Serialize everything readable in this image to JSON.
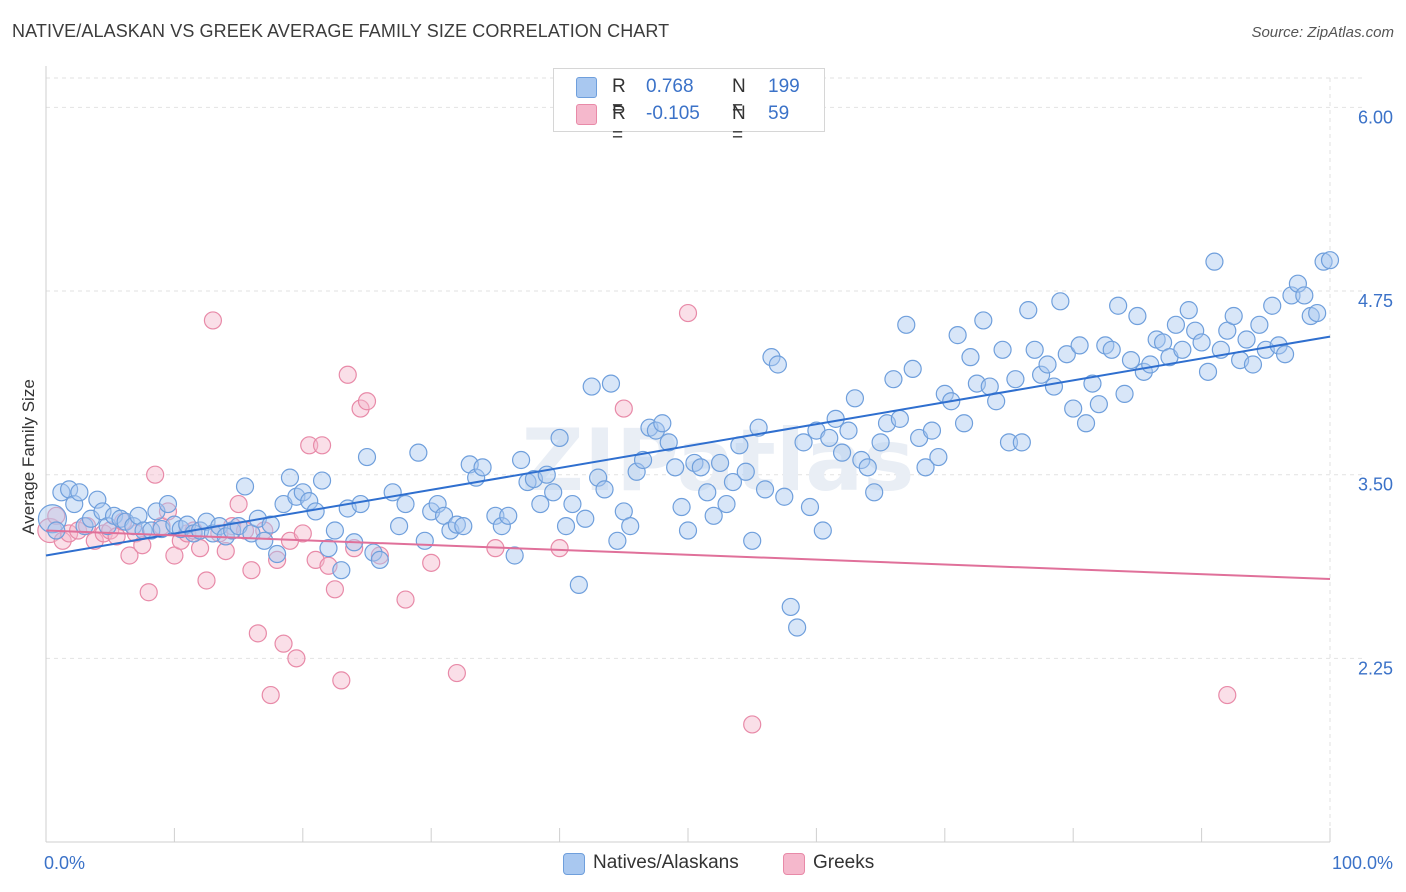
{
  "title": "NATIVE/ALASKAN VS GREEK AVERAGE FAMILY SIZE CORRELATION CHART",
  "source": "Source: ZipAtlas.com",
  "watermark": "ZIPatlas",
  "colors": {
    "blue_fill": "#a9c8f0",
    "blue_stroke": "#6f9fdc",
    "blue_line": "#2f6fcf",
    "pink_fill": "#f5b8cc",
    "pink_stroke": "#e88aa8",
    "pink_line": "#e0709a",
    "axis_text": "#3b72c8",
    "grid": "#e2e2e2"
  },
  "legend": {
    "rows": [
      {
        "r_label": "R =",
        "r_value": "0.768",
        "n_label": "N =",
        "n_value": "199"
      },
      {
        "r_label": "R =",
        "r_value": "-0.105",
        "n_label": "N =",
        "n_value": "59"
      }
    ]
  },
  "bottom_legend": [
    "Natives/Alaskans",
    "Greeks"
  ],
  "chart_data": {
    "type": "scatter",
    "title": "NATIVE/ALASKAN VS GREEK AVERAGE FAMILY SIZE CORRELATION CHART",
    "xlabel": "",
    "ylabel": "Average Family Size",
    "xlim": [
      0,
      100
    ],
    "ylim": [
      1.0,
      6.2
    ],
    "x_tick_labels": [
      "0.0%",
      "100.0%"
    ],
    "y_ticks": [
      2.25,
      3.5,
      4.75,
      6.0
    ],
    "y_tick_labels": [
      "2.25",
      "3.50",
      "4.75",
      "6.00"
    ],
    "grid": true,
    "legend_position": "top-center",
    "series": [
      {
        "name": "Natives/Alaskans",
        "color": "#a9c8f0",
        "trend": {
          "x": [
            0,
            100
          ],
          "y": [
            2.95,
            4.44
          ]
        },
        "points": [
          [
            0.5,
            3.2
          ],
          [
            0.8,
            3.12
          ],
          [
            1.2,
            3.38
          ],
          [
            1.8,
            3.4
          ],
          [
            2.2,
            3.3
          ],
          [
            2.6,
            3.38
          ],
          [
            3.0,
            3.15
          ],
          [
            3.5,
            3.2
          ],
          [
            4.0,
            3.33
          ],
          [
            4.4,
            3.25
          ],
          [
            4.8,
            3.15
          ],
          [
            5.3,
            3.22
          ],
          [
            5.8,
            3.2
          ],
          [
            6.2,
            3.18
          ],
          [
            6.8,
            3.15
          ],
          [
            7.2,
            3.22
          ],
          [
            7.6,
            3.12
          ],
          [
            8.2,
            3.12
          ],
          [
            8.6,
            3.25
          ],
          [
            9.0,
            3.13
          ],
          [
            9.5,
            3.3
          ],
          [
            10.0,
            3.16
          ],
          [
            10.5,
            3.13
          ],
          [
            11.0,
            3.16
          ],
          [
            11.5,
            3.1
          ],
          [
            12.0,
            3.12
          ],
          [
            12.5,
            3.18
          ],
          [
            13.0,
            3.1
          ],
          [
            13.5,
            3.15
          ],
          [
            14.0,
            3.08
          ],
          [
            14.5,
            3.12
          ],
          [
            15.0,
            3.15
          ],
          [
            15.5,
            3.42
          ],
          [
            16.0,
            3.1
          ],
          [
            16.5,
            3.2
          ],
          [
            17.0,
            3.05
          ],
          [
            17.5,
            3.16
          ],
          [
            18.0,
            2.96
          ],
          [
            18.5,
            3.3
          ],
          [
            19.0,
            3.48
          ],
          [
            19.5,
            3.35
          ],
          [
            20.0,
            3.38
          ],
          [
            20.5,
            3.32
          ],
          [
            21.0,
            3.25
          ],
          [
            21.5,
            3.46
          ],
          [
            22.0,
            3.0
          ],
          [
            22.5,
            3.12
          ],
          [
            23.0,
            2.85
          ],
          [
            23.5,
            3.27
          ],
          [
            24.0,
            3.04
          ],
          [
            24.5,
            3.3
          ],
          [
            25.0,
            3.62
          ],
          [
            25.5,
            2.97
          ],
          [
            26.0,
            2.92
          ],
          [
            27.0,
            3.38
          ],
          [
            27.5,
            3.15
          ],
          [
            28.0,
            3.3
          ],
          [
            29.0,
            3.65
          ],
          [
            29.5,
            3.05
          ],
          [
            30.0,
            3.25
          ],
          [
            30.5,
            3.3
          ],
          [
            31.0,
            3.22
          ],
          [
            31.5,
            3.12
          ],
          [
            32.0,
            3.16
          ],
          [
            32.5,
            3.15
          ],
          [
            33.0,
            3.57
          ],
          [
            33.5,
            3.48
          ],
          [
            34.0,
            3.55
          ],
          [
            35.0,
            3.22
          ],
          [
            35.5,
            3.15
          ],
          [
            36.0,
            3.22
          ],
          [
            36.5,
            2.95
          ],
          [
            37.0,
            3.6
          ],
          [
            37.5,
            3.45
          ],
          [
            38.0,
            3.47
          ],
          [
            38.5,
            3.3
          ],
          [
            39.0,
            3.5
          ],
          [
            39.5,
            3.38
          ],
          [
            40.0,
            3.75
          ],
          [
            40.5,
            3.15
          ],
          [
            41.0,
            3.3
          ],
          [
            41.5,
            2.75
          ],
          [
            42.0,
            3.2
          ],
          [
            42.5,
            4.1
          ],
          [
            43.0,
            3.48
          ],
          [
            43.5,
            3.4
          ],
          [
            44.0,
            4.12
          ],
          [
            44.5,
            3.05
          ],
          [
            45.0,
            3.25
          ],
          [
            45.5,
            3.15
          ],
          [
            46.0,
            3.52
          ],
          [
            46.5,
            3.6
          ],
          [
            47.0,
            3.82
          ],
          [
            47.5,
            3.8
          ],
          [
            48.0,
            3.85
          ],
          [
            48.5,
            3.72
          ],
          [
            49.0,
            3.55
          ],
          [
            49.5,
            3.28
          ],
          [
            50.0,
            3.12
          ],
          [
            50.5,
            3.58
          ],
          [
            51.0,
            3.55
          ],
          [
            51.5,
            3.38
          ],
          [
            52.0,
            3.22
          ],
          [
            52.5,
            3.58
          ],
          [
            53.0,
            3.3
          ],
          [
            53.5,
            3.45
          ],
          [
            54.0,
            3.7
          ],
          [
            54.5,
            3.52
          ],
          [
            55.0,
            3.05
          ],
          [
            55.5,
            3.82
          ],
          [
            56.0,
            3.4
          ],
          [
            56.5,
            4.3
          ],
          [
            57.0,
            4.25
          ],
          [
            57.5,
            3.35
          ],
          [
            58.0,
            2.6
          ],
          [
            58.5,
            2.46
          ],
          [
            59.0,
            3.72
          ],
          [
            59.5,
            3.28
          ],
          [
            60.0,
            3.8
          ],
          [
            60.5,
            3.12
          ],
          [
            61.0,
            3.75
          ],
          [
            61.5,
            3.88
          ],
          [
            62.0,
            3.65
          ],
          [
            62.5,
            3.8
          ],
          [
            63.0,
            4.02
          ],
          [
            63.5,
            3.6
          ],
          [
            64.0,
            3.55
          ],
          [
            64.5,
            3.38
          ],
          [
            65.0,
            3.72
          ],
          [
            65.5,
            3.85
          ],
          [
            66.0,
            4.15
          ],
          [
            66.5,
            3.88
          ],
          [
            67.0,
            4.52
          ],
          [
            67.5,
            4.22
          ],
          [
            68.0,
            3.75
          ],
          [
            68.5,
            3.55
          ],
          [
            69.0,
            3.8
          ],
          [
            69.5,
            3.62
          ],
          [
            70.0,
            4.05
          ],
          [
            70.5,
            4.0
          ],
          [
            71.0,
            4.45
          ],
          [
            71.5,
            3.85
          ],
          [
            72.0,
            4.3
          ],
          [
            72.5,
            4.12
          ],
          [
            73.0,
            4.55
          ],
          [
            73.5,
            4.1
          ],
          [
            74.0,
            4.0
          ],
          [
            74.5,
            4.35
          ],
          [
            75.0,
            3.72
          ],
          [
            75.5,
            4.15
          ],
          [
            76.0,
            3.72
          ],
          [
            76.5,
            4.62
          ],
          [
            77.0,
            4.35
          ],
          [
            77.5,
            4.18
          ],
          [
            78.0,
            4.25
          ],
          [
            78.5,
            4.1
          ],
          [
            79.0,
            4.68
          ],
          [
            79.5,
            4.32
          ],
          [
            80.0,
            3.95
          ],
          [
            80.5,
            4.38
          ],
          [
            81.0,
            3.85
          ],
          [
            81.5,
            4.12
          ],
          [
            82.0,
            3.98
          ],
          [
            82.5,
            4.38
          ],
          [
            83.0,
            4.35
          ],
          [
            83.5,
            4.65
          ],
          [
            84.0,
            4.05
          ],
          [
            84.5,
            4.28
          ],
          [
            85.0,
            4.58
          ],
          [
            85.5,
            4.2
          ],
          [
            86.0,
            4.25
          ],
          [
            86.5,
            4.42
          ],
          [
            87.0,
            4.4
          ],
          [
            87.5,
            4.3
          ],
          [
            88.0,
            4.52
          ],
          [
            88.5,
            4.35
          ],
          [
            89.0,
            4.62
          ],
          [
            89.5,
            4.48
          ],
          [
            90.0,
            4.4
          ],
          [
            90.5,
            4.2
          ],
          [
            91.0,
            4.95
          ],
          [
            91.5,
            4.35
          ],
          [
            92.0,
            4.48
          ],
          [
            92.5,
            4.58
          ],
          [
            93.0,
            4.28
          ],
          [
            93.5,
            4.42
          ],
          [
            94.0,
            4.25
          ],
          [
            94.5,
            4.52
          ],
          [
            95.0,
            4.35
          ],
          [
            95.5,
            4.65
          ],
          [
            96.0,
            4.38
          ],
          [
            96.5,
            4.32
          ],
          [
            97.0,
            4.72
          ],
          [
            97.5,
            4.8
          ],
          [
            98.0,
            4.72
          ],
          [
            98.5,
            4.58
          ],
          [
            99.0,
            4.6
          ],
          [
            99.5,
            4.95
          ],
          [
            100.0,
            4.96
          ]
        ]
      },
      {
        "name": "Greeks",
        "color": "#f5b8cc",
        "trend": {
          "x": [
            0,
            100
          ],
          "y": [
            3.12,
            2.79
          ]
        },
        "points": [
          [
            0.3,
            3.12
          ],
          [
            0.8,
            3.22
          ],
          [
            1.3,
            3.05
          ],
          [
            1.8,
            3.1
          ],
          [
            2.5,
            3.12
          ],
          [
            3.2,
            3.15
          ],
          [
            3.8,
            3.05
          ],
          [
            4.5,
            3.1
          ],
          [
            5.0,
            3.12
          ],
          [
            5.5,
            3.08
          ],
          [
            6.0,
            3.18
          ],
          [
            6.5,
            2.95
          ],
          [
            7.0,
            3.1
          ],
          [
            7.5,
            3.02
          ],
          [
            8.0,
            2.7
          ],
          [
            8.5,
            3.5
          ],
          [
            9.0,
            3.15
          ],
          [
            9.5,
            3.25
          ],
          [
            10.0,
            2.95
          ],
          [
            10.5,
            3.05
          ],
          [
            11.0,
            3.1
          ],
          [
            11.5,
            3.12
          ],
          [
            12.0,
            3.0
          ],
          [
            12.5,
            2.78
          ],
          [
            13.0,
            4.55
          ],
          [
            13.5,
            3.1
          ],
          [
            14.0,
            2.98
          ],
          [
            14.5,
            3.15
          ],
          [
            15.0,
            3.3
          ],
          [
            15.5,
            3.12
          ],
          [
            16.0,
            2.85
          ],
          [
            16.5,
            2.42
          ],
          [
            17.0,
            3.12
          ],
          [
            17.5,
            2.0
          ],
          [
            18.0,
            2.92
          ],
          [
            18.5,
            2.35
          ],
          [
            19.0,
            3.05
          ],
          [
            19.5,
            2.25
          ],
          [
            20.0,
            3.1
          ],
          [
            20.5,
            3.7
          ],
          [
            21.0,
            2.92
          ],
          [
            21.5,
            3.7
          ],
          [
            22.0,
            2.88
          ],
          [
            22.5,
            2.72
          ],
          [
            23.0,
            2.1
          ],
          [
            23.5,
            4.18
          ],
          [
            24.0,
            3.0
          ],
          [
            24.5,
            3.95
          ],
          [
            25.0,
            4.0
          ],
          [
            26.0,
            2.95
          ],
          [
            28.0,
            2.65
          ],
          [
            30.0,
            2.9
          ],
          [
            32.0,
            2.15
          ],
          [
            35.0,
            3.0
          ],
          [
            40.0,
            3.0
          ],
          [
            45.0,
            3.95
          ],
          [
            50.0,
            4.6
          ],
          [
            55.0,
            1.8
          ],
          [
            92.0,
            2.0
          ]
        ]
      }
    ]
  }
}
